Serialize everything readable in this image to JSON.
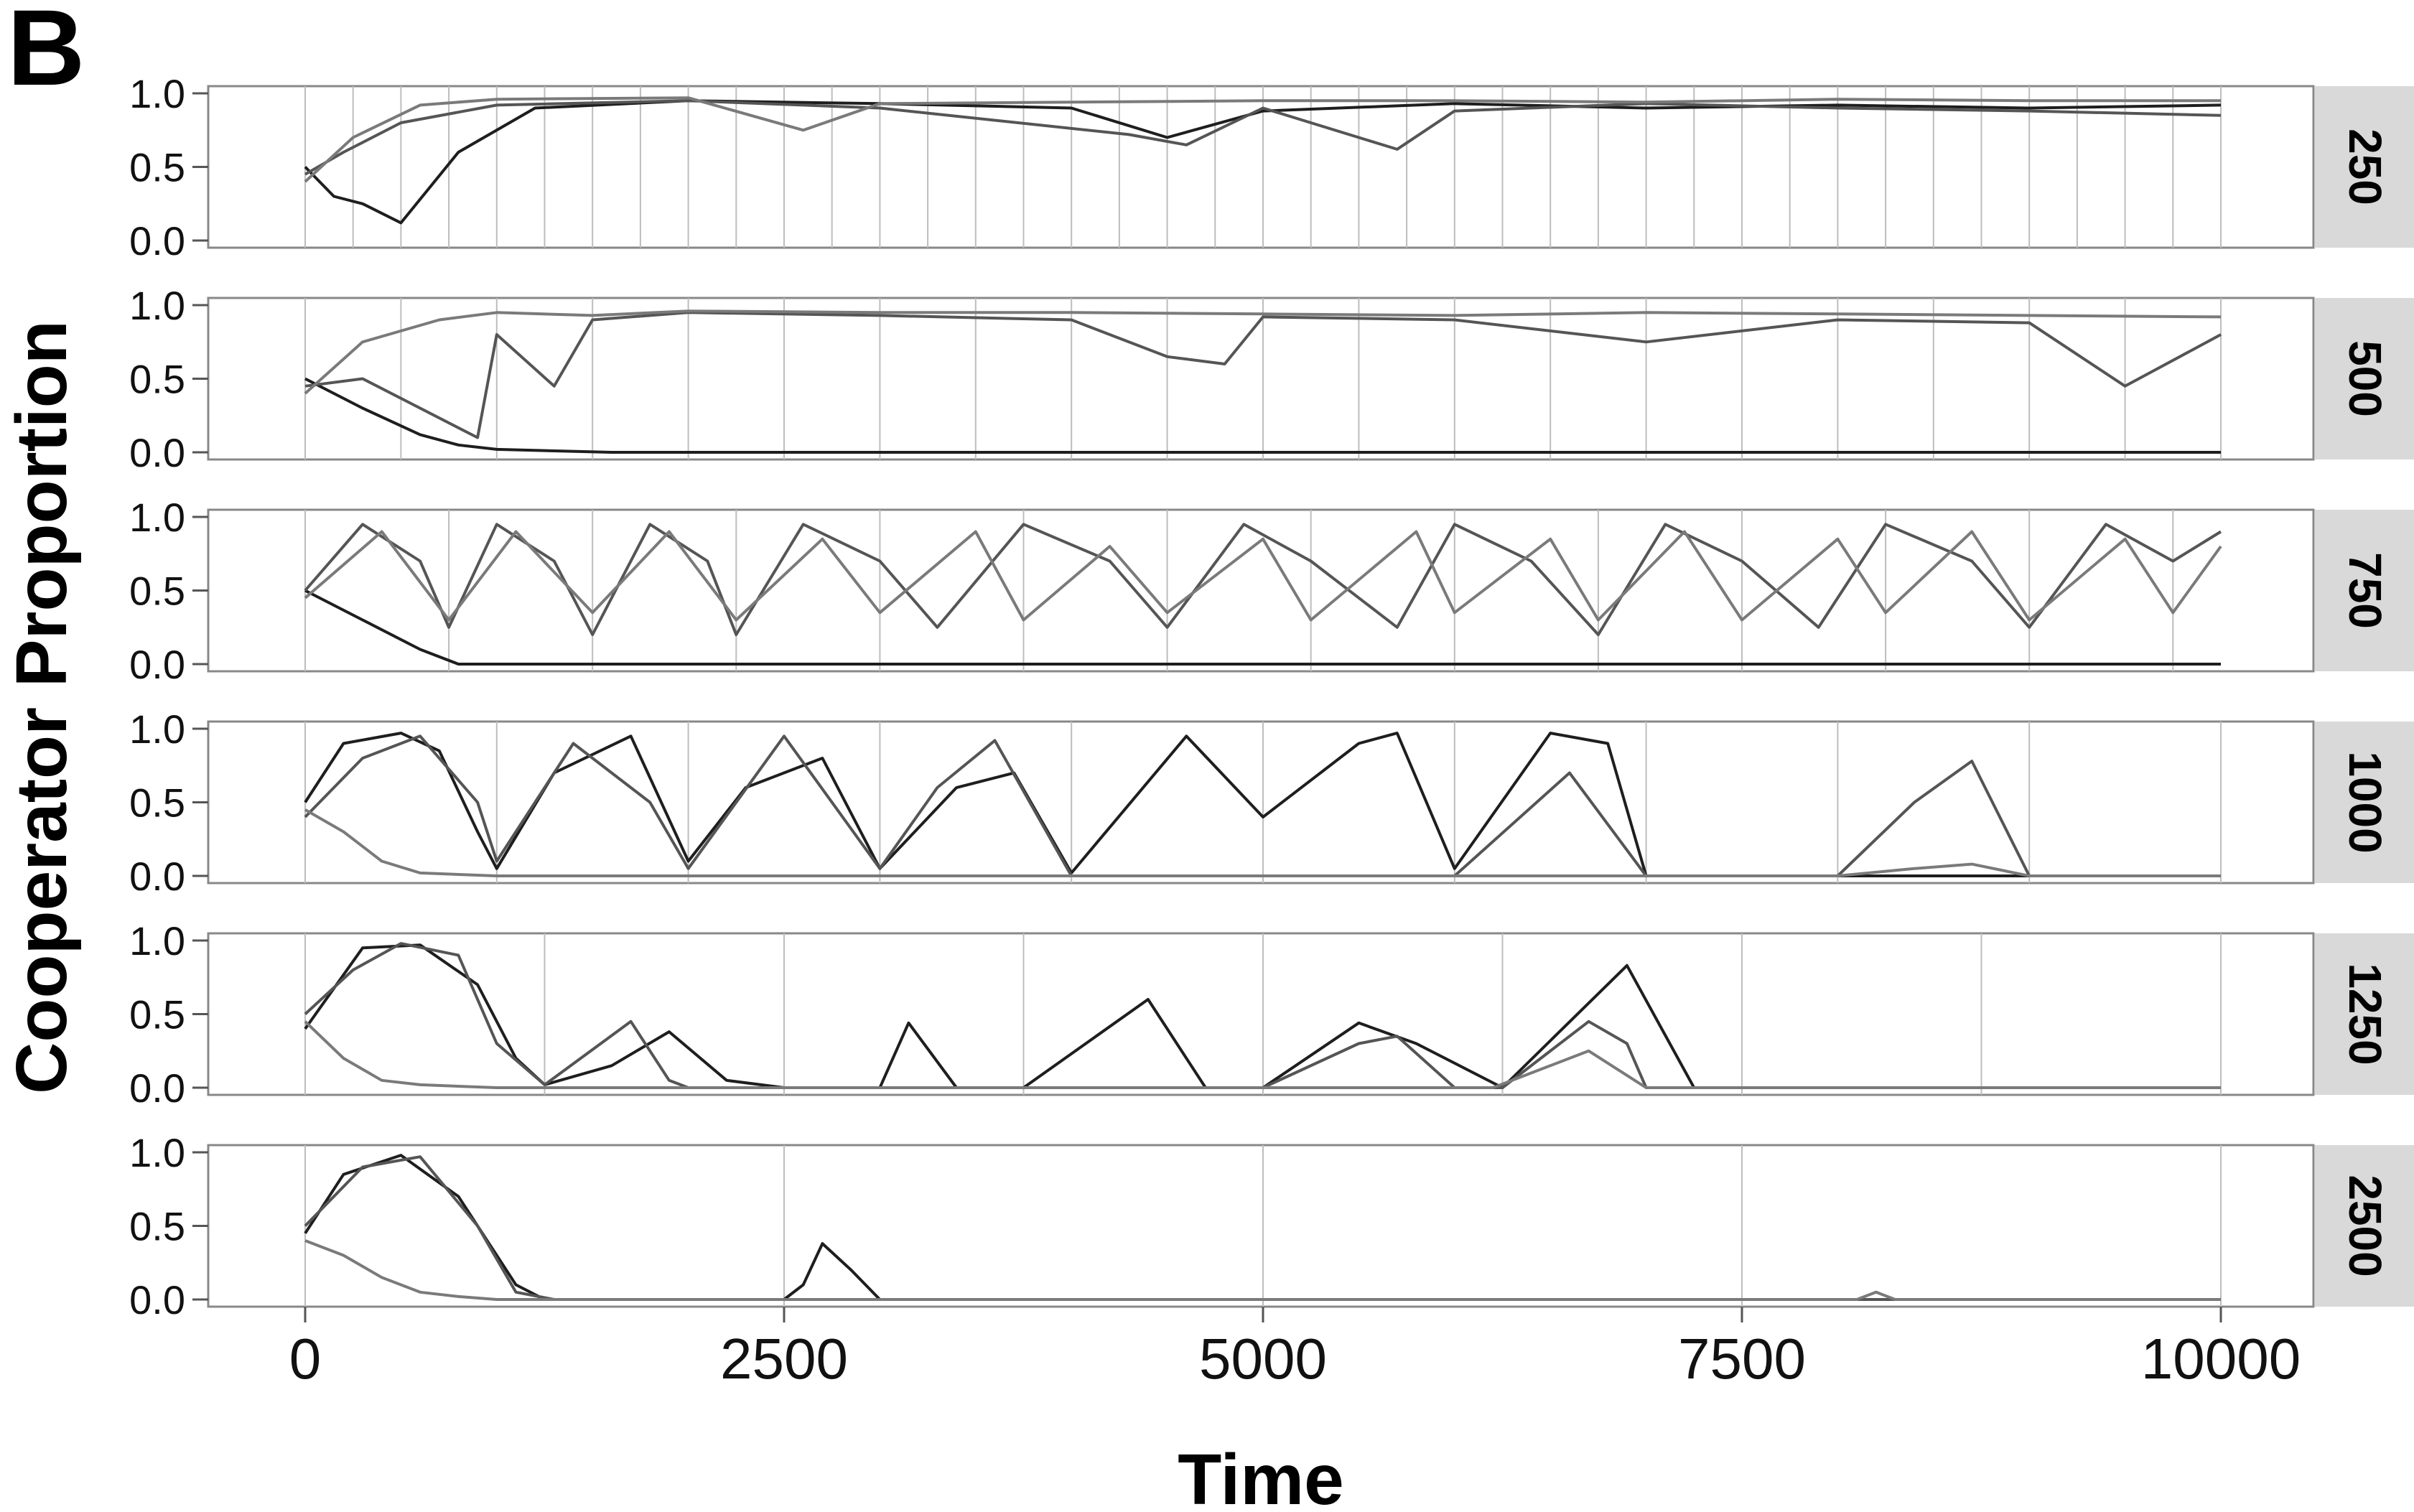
{
  "panel_label": "B",
  "chart_data": {
    "type": "line",
    "description_of_layout": "faceted",
    "xlabel": "Time",
    "ylabel": "Cooperator Proportion",
    "xlim": [
      0,
      10000
    ],
    "ylim": [
      0,
      1
    ],
    "x_ticks": [
      "0",
      "2500",
      "5000",
      "7500",
      "10000"
    ],
    "x_tick_values": [
      0,
      2500,
      5000,
      7500,
      10000
    ],
    "y_ticks": [
      "0.0",
      "0.5",
      "1.0"
    ],
    "y_tick_values": [
      0,
      0.5,
      1
    ],
    "grid": "vertical lines at each facet's period boundaries",
    "line_colors": [
      "#1e1e1e",
      "#555555",
      "#7a7a7a",
      "#9a9a9a",
      "#bdbdbd"
    ],
    "facets": [
      {
        "label": "250",
        "period": 250,
        "series": [
          {
            "x": [
              0,
              150,
              300,
              500,
              800,
              1200,
              2000,
              3000,
              4000,
              4500,
              5000,
              6000,
              7000,
              8000,
              9000,
              10000
            ],
            "values": [
              0.5,
              0.3,
              0.25,
              0.12,
              0.6,
              0.9,
              0.95,
              0.93,
              0.9,
              0.7,
              0.88,
              0.93,
              0.9,
              0.92,
              0.9,
              0.92
            ]
          },
          {
            "x": [
              0,
              200,
              500,
              1000,
              2000,
              3000,
              4300,
              4600,
              5000,
              5700,
              6000,
              7000,
              8000,
              9000,
              10000
            ],
            "values": [
              0.45,
              0.6,
              0.8,
              0.92,
              0.95,
              0.9,
              0.72,
              0.65,
              0.9,
              0.62,
              0.88,
              0.93,
              0.9,
              0.88,
              0.85
            ]
          },
          {
            "x": [
              0,
              250,
              600,
              1000,
              2000,
              2600,
              3000,
              5000,
              6000,
              7000,
              8000,
              9000,
              10000
            ],
            "values": [
              0.4,
              0.7,
              0.92,
              0.96,
              0.97,
              0.75,
              0.93,
              0.95,
              0.95,
              0.94,
              0.96,
              0.95,
              0.95
            ]
          }
        ]
      },
      {
        "label": "500",
        "period": 500,
        "series": [
          {
            "x": [
              0,
              300,
              600,
              800,
              1000,
              1300,
              1600,
              2000,
              3000,
              4000,
              4700,
              5000,
              6000,
              7000,
              8000,
              9000,
              9600,
              10000
            ],
            "values": [
              0.5,
              0.3,
              0.12,
              0.05,
              0.02,
              0.01,
              0.0,
              0.0,
              0.0,
              0.0,
              0.0,
              0.0,
              0.0,
              0.0,
              0.0,
              0.0,
              0.0,
              0.0
            ]
          },
          {
            "x": [
              0,
              300,
              600,
              900,
              1000,
              1300,
              1500,
              2000,
              3000,
              4000,
              4500,
              4800,
              5000,
              6000,
              7000,
              8000,
              9000,
              9500,
              10000
            ],
            "values": [
              0.45,
              0.5,
              0.3,
              0.1,
              0.8,
              0.45,
              0.9,
              0.95,
              0.93,
              0.9,
              0.65,
              0.6,
              0.92,
              0.9,
              0.75,
              0.9,
              0.88,
              0.45,
              0.8
            ]
          },
          {
            "x": [
              0,
              300,
              700,
              1000,
              1500,
              2000,
              3000,
              4000,
              5000,
              6000,
              7000,
              8000,
              9000,
              10000
            ],
            "values": [
              0.4,
              0.75,
              0.9,
              0.95,
              0.93,
              0.96,
              0.95,
              0.95,
              0.94,
              0.93,
              0.95,
              0.94,
              0.93,
              0.92
            ]
          }
        ]
      },
      {
        "label": "750",
        "period": 750,
        "series": [
          {
            "x": [
              0,
              300,
              600,
              800,
              1200,
              2000,
              3000,
              4000,
              5000,
              6000,
              7000,
              8000,
              9000,
              10000
            ],
            "values": [
              0.5,
              0.3,
              0.1,
              0.0,
              0.0,
              0.0,
              0.0,
              0.0,
              0.0,
              0.0,
              0.0,
              0.0,
              0.0,
              0.0
            ]
          },
          {
            "x": [
              0,
              300,
              600,
              750,
              1000,
              1300,
              1500,
              1800,
              2100,
              2250,
              2600,
              3000,
              3300,
              3750,
              4200,
              4500,
              4900,
              5250,
              5700,
              6000,
              6400,
              6750,
              7100,
              7500,
              7900,
              8250,
              8700,
              9000,
              9400,
              9750,
              10000
            ],
            "values": [
              0.5,
              0.95,
              0.7,
              0.25,
              0.95,
              0.7,
              0.2,
              0.95,
              0.7,
              0.2,
              0.95,
              0.7,
              0.25,
              0.95,
              0.7,
              0.25,
              0.95,
              0.7,
              0.25,
              0.95,
              0.7,
              0.2,
              0.95,
              0.7,
              0.25,
              0.95,
              0.7,
              0.25,
              0.95,
              0.7,
              0.9
            ]
          },
          {
            "x": [
              0,
              400,
              750,
              1100,
              1500,
              1900,
              2250,
              2700,
              3000,
              3500,
              3750,
              4200,
              4500,
              5000,
              5250,
              5800,
              6000,
              6500,
              6750,
              7200,
              7500,
              8000,
              8250,
              8700,
              9000,
              9500,
              9750,
              10000
            ],
            "values": [
              0.45,
              0.9,
              0.3,
              0.9,
              0.35,
              0.9,
              0.3,
              0.85,
              0.35,
              0.9,
              0.3,
              0.8,
              0.35,
              0.85,
              0.3,
              0.9,
              0.35,
              0.85,
              0.3,
              0.9,
              0.3,
              0.85,
              0.35,
              0.9,
              0.3,
              0.85,
              0.35,
              0.8
            ]
          }
        ]
      },
      {
        "label": "1000",
        "period": 1000,
        "series": [
          {
            "x": [
              0,
              200,
              500,
              700,
              900,
              1000,
              1300,
              1700,
              2000,
              2300,
              2700,
              3000,
              3400,
              3700,
              4000,
              4600,
              5000,
              5500,
              5700,
              6000,
              6500,
              6800,
              7000,
              8000,
              10000
            ],
            "values": [
              0.5,
              0.9,
              0.97,
              0.85,
              0.3,
              0.05,
              0.7,
              0.95,
              0.1,
              0.6,
              0.8,
              0.05,
              0.6,
              0.7,
              0.02,
              0.95,
              0.4,
              0.9,
              0.97,
              0.05,
              0.97,
              0.9,
              0.0,
              0.0,
              0.0
            ]
          },
          {
            "x": [
              0,
              300,
              600,
              900,
              1000,
              1400,
              1800,
              2000,
              2500,
              3000,
              3300,
              3600,
              4000,
              6000,
              6600,
              7000,
              8000,
              8400,
              8700,
              9000,
              10000
            ],
            "values": [
              0.4,
              0.8,
              0.95,
              0.5,
              0.1,
              0.9,
              0.5,
              0.05,
              0.95,
              0.05,
              0.6,
              0.92,
              0.0,
              0.0,
              0.7,
              0.0,
              0.0,
              0.5,
              0.78,
              0.0,
              0.0
            ]
          },
          {
            "x": [
              0,
              200,
              400,
              600,
              1000,
              2000,
              3000,
              4000,
              5000,
              8000,
              8400,
              8700,
              9000,
              10000
            ],
            "values": [
              0.45,
              0.3,
              0.1,
              0.02,
              0.0,
              0.0,
              0.0,
              0.0,
              0.0,
              0.0,
              0.05,
              0.08,
              0.0,
              0.0
            ]
          }
        ]
      },
      {
        "label": "1250",
        "period": 1250,
        "series": [
          {
            "x": [
              0,
              300,
              600,
              900,
              1100,
              1250,
              1600,
              1900,
              2200,
              2500,
              3000,
              3150,
              3400,
              3750,
              4400,
              4700,
              5000,
              5500,
              5800,
              6250,
              6900,
              7250,
              8000,
              10000
            ],
            "values": [
              0.4,
              0.95,
              0.97,
              0.7,
              0.2,
              0.02,
              0.15,
              0.38,
              0.05,
              0.0,
              0.0,
              0.44,
              0.0,
              0.0,
              0.6,
              0.0,
              0.0,
              0.44,
              0.3,
              0.0,
              0.83,
              0.0,
              0.0,
              0.0
            ]
          },
          {
            "x": [
              0,
              250,
              500,
              800,
              1000,
              1250,
              1700,
              1900,
              2000,
              5000,
              5500,
              5700,
              6000,
              6250,
              6700,
              6900,
              7000,
              10000
            ],
            "values": [
              0.5,
              0.8,
              0.98,
              0.9,
              0.3,
              0.02,
              0.45,
              0.05,
              0.0,
              0.0,
              0.3,
              0.35,
              0.0,
              0.0,
              0.45,
              0.3,
              0.0,
              0.0
            ]
          },
          {
            "x": [
              0,
              200,
              400,
              600,
              1000,
              6200,
              6500,
              6700,
              7000,
              10000
            ],
            "values": [
              0.45,
              0.2,
              0.05,
              0.02,
              0.0,
              0.0,
              0.15,
              0.25,
              0.0,
              0.0
            ]
          }
        ]
      },
      {
        "label": "2500",
        "period": 2500,
        "series": [
          {
            "x": [
              0,
              200,
              500,
              800,
              1100,
              1250,
              2500,
              2600,
              2700,
              2850,
              3000,
              10000
            ],
            "values": [
              0.45,
              0.85,
              0.98,
              0.7,
              0.1,
              0.0,
              0.0,
              0.1,
              0.38,
              0.2,
              0.0,
              0.0
            ]
          },
          {
            "x": [
              0,
              300,
              600,
              900,
              1100,
              1300,
              10000
            ],
            "values": [
              0.5,
              0.9,
              0.97,
              0.5,
              0.05,
              0.0,
              0.0
            ]
          },
          {
            "x": [
              0,
              200,
              400,
              600,
              800,
              1000,
              8100,
              8200,
              8300,
              10000
            ],
            "values": [
              0.4,
              0.3,
              0.15,
              0.05,
              0.02,
              0.0,
              0.0,
              0.05,
              0.0,
              0.0
            ]
          }
        ]
      }
    ]
  }
}
